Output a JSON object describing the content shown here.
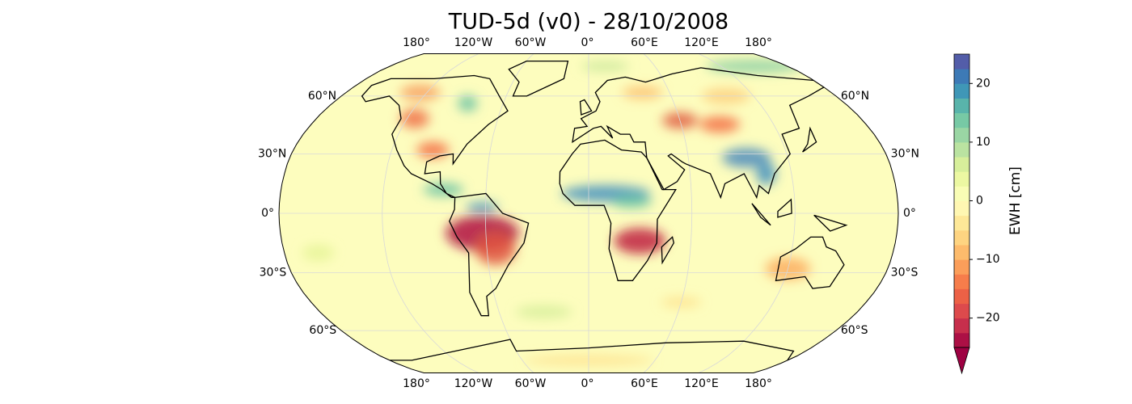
{
  "title": "TUD-5d (v0) - 28/10/2008",
  "map": {
    "lon_labels_top": [
      "180°",
      "120°W",
      "60°W",
      "0°",
      "60°E",
      "120°E",
      "180°"
    ],
    "lon_labels_bottom": [
      "180°",
      "120°W",
      "60°W",
      "0°",
      "60°E",
      "120°E",
      "180°"
    ],
    "lat_labels_left": [
      "60°N",
      "30°N",
      "0°",
      "30°S",
      "60°S"
    ],
    "lat_labels_right": [
      "60°N",
      "30°N",
      "0°",
      "30°S",
      "60°S"
    ]
  },
  "colorbar": {
    "label": "EWH [cm]",
    "lim": [
      -25,
      25
    ],
    "extend": "min",
    "ticks": [
      {
        "value": -20,
        "label": "−20"
      },
      {
        "value": -10,
        "label": "−10"
      },
      0,
      10,
      20
    ]
  }
}
